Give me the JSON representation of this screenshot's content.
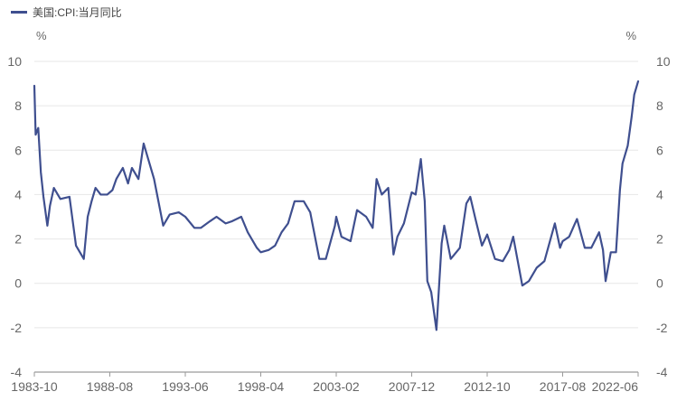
{
  "chart_data": {
    "type": "line",
    "title": "",
    "xlabel": "",
    "ylabel": "",
    "grid": true,
    "legend_placement": "top-left",
    "y_unit_left": "%",
    "y_unit_right": "%",
    "ylim": [
      -4,
      10
    ],
    "yticks": [
      10,
      8,
      6,
      4,
      2,
      0,
      -2,
      -4
    ],
    "x_tick_labels": [
      "1983-10",
      "1988-08",
      "1993-06",
      "1998-04",
      "2003-02",
      "2007-12",
      "2012-10",
      "2017-08",
      "2022-06"
    ],
    "series": [
      {
        "name": "美国:CPI:当月同比",
        "color": "#3f4f8f",
        "x": [
          "1983-10",
          "1983-11",
          "1984-01",
          "1984-03",
          "1984-05",
          "1984-08",
          "1984-10",
          "1985-01",
          "1985-06",
          "1986-01",
          "1986-06",
          "1986-12",
          "1987-03",
          "1987-06",
          "1987-09",
          "1988-01",
          "1988-06",
          "1988-10",
          "1989-01",
          "1989-06",
          "1989-10",
          "1990-01",
          "1990-06",
          "1990-10",
          "1991-01",
          "1991-06",
          "1992-01",
          "1992-06",
          "1993-01",
          "1993-06",
          "1994-01",
          "1994-06",
          "1995-01",
          "1995-06",
          "1996-01",
          "1996-06",
          "1997-01",
          "1997-06",
          "1998-01",
          "1998-04",
          "1998-10",
          "1999-03",
          "1999-08",
          "2000-01",
          "2000-06",
          "2001-01",
          "2001-06",
          "2002-01",
          "2002-06",
          "2003-01",
          "2003-02",
          "2003-06",
          "2004-01",
          "2004-06",
          "2005-01",
          "2005-06",
          "2005-09",
          "2006-01",
          "2006-06",
          "2006-10",
          "2007-01",
          "2007-06",
          "2007-12",
          "2008-03",
          "2008-07",
          "2008-10",
          "2008-12",
          "2009-03",
          "2009-07",
          "2009-11",
          "2010-01",
          "2010-06",
          "2011-01",
          "2011-06",
          "2011-09",
          "2012-01",
          "2012-06",
          "2012-10",
          "2013-04",
          "2013-10",
          "2014-03",
          "2014-06",
          "2015-01",
          "2015-06",
          "2015-12",
          "2016-06",
          "2017-02",
          "2017-06",
          "2017-08",
          "2018-01",
          "2018-07",
          "2019-01",
          "2019-06",
          "2019-12",
          "2020-03",
          "2020-05",
          "2020-09",
          "2021-01",
          "2021-04",
          "2021-06",
          "2021-10",
          "2022-01",
          "2022-03",
          "2022-06"
        ],
        "values": [
          8.9,
          6.7,
          7.0,
          5.0,
          3.9,
          2.6,
          3.5,
          4.3,
          3.8,
          3.9,
          1.7,
          1.1,
          3.0,
          3.7,
          4.3,
          4.0,
          4.0,
          4.2,
          4.7,
          5.2,
          4.5,
          5.2,
          4.7,
          6.3,
          5.7,
          4.7,
          2.6,
          3.1,
          3.2,
          3.0,
          2.5,
          2.5,
          2.8,
          3.0,
          2.7,
          2.8,
          3.0,
          2.3,
          1.6,
          1.4,
          1.5,
          1.7,
          2.3,
          2.7,
          3.7,
          3.7,
          3.2,
          1.1,
          1.1,
          2.6,
          3.0,
          2.1,
          1.9,
          3.3,
          3.0,
          2.5,
          4.7,
          4.0,
          4.3,
          1.3,
          2.1,
          2.7,
          4.1,
          4.0,
          5.6,
          3.7,
          0.1,
          -0.4,
          -2.1,
          1.8,
          2.6,
          1.1,
          1.6,
          3.6,
          3.9,
          2.9,
          1.7,
          2.2,
          1.1,
          1.0,
          1.5,
          2.1,
          -0.1,
          0.1,
          0.7,
          1.0,
          2.7,
          1.6,
          1.9,
          2.1,
          2.9,
          1.6,
          1.6,
          2.3,
          1.5,
          0.1,
          1.4,
          1.4,
          4.2,
          5.4,
          6.2,
          7.5,
          8.5,
          9.1
        ]
      }
    ]
  }
}
